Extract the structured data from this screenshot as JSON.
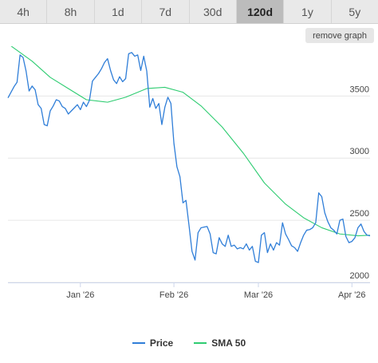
{
  "tabs": [
    {
      "label": "4h",
      "active": false
    },
    {
      "label": "8h",
      "active": false
    },
    {
      "label": "1d",
      "active": false
    },
    {
      "label": "7d",
      "active": false
    },
    {
      "label": "30d",
      "active": false
    },
    {
      "label": "120d",
      "active": true
    },
    {
      "label": "1y",
      "active": false
    },
    {
      "label": "5y",
      "active": false
    }
  ],
  "remove_graph_label": "remove graph",
  "chart_data": {
    "type": "line",
    "title": "",
    "xlabel": "",
    "ylabel": "",
    "x_start": "2025-12-08",
    "x_end": "2026-04-07",
    "ylim": [
      2000,
      3900
    ],
    "yticks": [
      2000,
      2500,
      3000,
      3500
    ],
    "xticks": [
      {
        "label": "Jan '26",
        "date": "2026-01-01"
      },
      {
        "label": "Feb '26",
        "date": "2026-02-01"
      },
      {
        "label": "Mar '26",
        "date": "2026-03-01"
      },
      {
        "label": "Apr '26",
        "date": "2026-04-01"
      }
    ],
    "grid": true,
    "legend_position": "bottom-center",
    "series": [
      {
        "name": "Price",
        "color": "#2f7ed8",
        "points": [
          [
            "2025-12-08",
            3485
          ],
          [
            "2025-12-09",
            3530
          ],
          [
            "2025-12-10",
            3575
          ],
          [
            "2025-12-11",
            3610
          ],
          [
            "2025-12-12",
            3830
          ],
          [
            "2025-12-13",
            3810
          ],
          [
            "2025-12-14",
            3700
          ],
          [
            "2025-12-15",
            3540
          ],
          [
            "2025-12-16",
            3580
          ],
          [
            "2025-12-17",
            3550
          ],
          [
            "2025-12-18",
            3430
          ],
          [
            "2025-12-19",
            3400
          ],
          [
            "2025-12-20",
            3270
          ],
          [
            "2025-12-21",
            3260
          ],
          [
            "2025-12-22",
            3380
          ],
          [
            "2025-12-23",
            3420
          ],
          [
            "2025-12-24",
            3470
          ],
          [
            "2025-12-25",
            3460
          ],
          [
            "2025-12-26",
            3415
          ],
          [
            "2025-12-27",
            3400
          ],
          [
            "2025-12-28",
            3355
          ],
          [
            "2025-12-29",
            3380
          ],
          [
            "2025-12-30",
            3405
          ],
          [
            "2025-12-31",
            3430
          ],
          [
            "2026-01-01",
            3390
          ],
          [
            "2026-01-02",
            3450
          ],
          [
            "2026-01-03",
            3415
          ],
          [
            "2026-01-04",
            3465
          ],
          [
            "2026-01-05",
            3620
          ],
          [
            "2026-01-06",
            3650
          ],
          [
            "2026-01-07",
            3680
          ],
          [
            "2026-01-08",
            3720
          ],
          [
            "2026-01-09",
            3770
          ],
          [
            "2026-01-10",
            3800
          ],
          [
            "2026-01-11",
            3705
          ],
          [
            "2026-01-12",
            3630
          ],
          [
            "2026-01-13",
            3600
          ],
          [
            "2026-01-14",
            3655
          ],
          [
            "2026-01-15",
            3615
          ],
          [
            "2026-01-16",
            3640
          ],
          [
            "2026-01-17",
            3840
          ],
          [
            "2026-01-18",
            3850
          ],
          [
            "2026-01-19",
            3820
          ],
          [
            "2026-01-20",
            3830
          ],
          [
            "2026-01-21",
            3705
          ],
          [
            "2026-01-22",
            3820
          ],
          [
            "2026-01-23",
            3700
          ],
          [
            "2026-01-24",
            3410
          ],
          [
            "2026-01-25",
            3480
          ],
          [
            "2026-01-26",
            3400
          ],
          [
            "2026-01-27",
            3440
          ],
          [
            "2026-01-28",
            3270
          ],
          [
            "2026-01-29",
            3410
          ],
          [
            "2026-01-30",
            3490
          ],
          [
            "2026-01-31",
            3440
          ],
          [
            "2026-02-01",
            3120
          ],
          [
            "2026-02-02",
            2930
          ],
          [
            "2026-02-03",
            2850
          ],
          [
            "2026-02-04",
            2640
          ],
          [
            "2026-02-05",
            2660
          ],
          [
            "2026-02-06",
            2460
          ],
          [
            "2026-02-07",
            2250
          ],
          [
            "2026-02-08",
            2180
          ],
          [
            "2026-02-09",
            2400
          ],
          [
            "2026-02-10",
            2440
          ],
          [
            "2026-02-11",
            2445
          ],
          [
            "2026-02-12",
            2450
          ],
          [
            "2026-02-13",
            2390
          ],
          [
            "2026-02-14",
            2240
          ],
          [
            "2026-02-15",
            2230
          ],
          [
            "2026-02-16",
            2360
          ],
          [
            "2026-02-17",
            2310
          ],
          [
            "2026-02-18",
            2290
          ],
          [
            "2026-02-19",
            2380
          ],
          [
            "2026-02-20",
            2290
          ],
          [
            "2026-02-21",
            2300
          ],
          [
            "2026-02-22",
            2270
          ],
          [
            "2026-02-23",
            2280
          ],
          [
            "2026-02-24",
            2270
          ],
          [
            "2026-02-25",
            2310
          ],
          [
            "2026-02-26",
            2260
          ],
          [
            "2026-02-27",
            2290
          ],
          [
            "2026-02-28",
            2170
          ],
          [
            "2026-03-01",
            2160
          ],
          [
            "2026-03-02",
            2380
          ],
          [
            "2026-03-03",
            2400
          ],
          [
            "2026-03-04",
            2240
          ],
          [
            "2026-03-05",
            2310
          ],
          [
            "2026-03-06",
            2260
          ],
          [
            "2026-03-07",
            2320
          ],
          [
            "2026-03-08",
            2300
          ],
          [
            "2026-03-09",
            2480
          ],
          [
            "2026-03-10",
            2390
          ],
          [
            "2026-03-11",
            2345
          ],
          [
            "2026-03-12",
            2295
          ],
          [
            "2026-03-13",
            2280
          ],
          [
            "2026-03-14",
            2250
          ],
          [
            "2026-03-15",
            2320
          ],
          [
            "2026-03-16",
            2380
          ],
          [
            "2026-03-17",
            2420
          ],
          [
            "2026-03-18",
            2425
          ],
          [
            "2026-03-19",
            2440
          ],
          [
            "2026-03-20",
            2480
          ],
          [
            "2026-03-21",
            2720
          ],
          [
            "2026-03-22",
            2690
          ],
          [
            "2026-03-23",
            2560
          ],
          [
            "2026-03-24",
            2490
          ],
          [
            "2026-03-25",
            2440
          ],
          [
            "2026-03-26",
            2420
          ],
          [
            "2026-03-27",
            2390
          ],
          [
            "2026-03-28",
            2500
          ],
          [
            "2026-03-29",
            2510
          ],
          [
            "2026-03-30",
            2370
          ],
          [
            "2026-03-31",
            2320
          ],
          [
            "2026-04-01",
            2330
          ],
          [
            "2026-04-02",
            2360
          ],
          [
            "2026-04-03",
            2440
          ],
          [
            "2026-04-04",
            2470
          ],
          [
            "2026-04-05",
            2410
          ],
          [
            "2026-04-06",
            2380
          ],
          [
            "2026-04-07",
            2375
          ]
        ]
      },
      {
        "name": "SMA 50",
        "color": "#2ecc71",
        "points": [
          [
            "2025-12-08",
            3920
          ],
          [
            "2025-12-16",
            3780
          ],
          [
            "2025-12-22",
            3650
          ],
          [
            "2025-12-28",
            3560
          ],
          [
            "2026-01-03",
            3470
          ],
          [
            "2026-01-10",
            3450
          ],
          [
            "2026-01-16",
            3490
          ],
          [
            "2026-01-23",
            3560
          ],
          [
            "2026-01-29",
            3570
          ],
          [
            "2026-02-04",
            3530
          ],
          [
            "2026-02-10",
            3420
          ],
          [
            "2026-02-17",
            3250
          ],
          [
            "2026-02-24",
            3040
          ],
          [
            "2026-03-03",
            2800
          ],
          [
            "2026-03-10",
            2630
          ],
          [
            "2026-03-16",
            2520
          ],
          [
            "2026-03-22",
            2440
          ],
          [
            "2026-03-28",
            2390
          ],
          [
            "2026-04-03",
            2375
          ],
          [
            "2026-04-07",
            2380
          ]
        ]
      }
    ]
  }
}
